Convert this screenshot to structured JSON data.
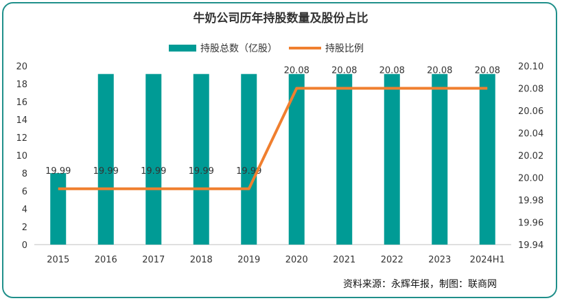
{
  "chart_data": {
    "type": "bar+line",
    "title": "牛奶公司历年持股数量及股份占比",
    "categories": [
      "2015",
      "2016",
      "2017",
      "2018",
      "2019",
      "2020",
      "2021",
      "2022",
      "2023",
      "2024H1"
    ],
    "series": [
      {
        "name": "持股总数（亿股）",
        "type": "bar",
        "axis": "left",
        "color": "#009b95",
        "values": [
          8.0,
          19.1,
          19.1,
          19.1,
          19.1,
          19.1,
          19.1,
          19.1,
          19.1,
          19.1
        ]
      },
      {
        "name": "持股比例",
        "type": "line",
        "axis": "right",
        "color": "#f07f2f",
        "values": [
          19.99,
          19.99,
          19.99,
          19.99,
          19.99,
          20.08,
          20.08,
          20.08,
          20.08,
          20.08
        ],
        "labels": [
          "19.99",
          "19.99",
          "19.99",
          "19.99",
          "19.99",
          "20.08",
          "20.08",
          "20.08",
          "20.08",
          "20.08"
        ]
      }
    ],
    "y_left": {
      "min": 0,
      "max": 20,
      "step": 2,
      "ticks": [
        "0",
        "2",
        "4",
        "6",
        "8",
        "10",
        "12",
        "14",
        "16",
        "18",
        "20"
      ]
    },
    "y_right": {
      "min": 19.94,
      "max": 20.1,
      "step": 0.02,
      "ticks": [
        "19.94",
        "19.96",
        "19.98",
        "20.00",
        "20.02",
        "20.04",
        "20.06",
        "20.08",
        "20.10"
      ]
    },
    "legend_position": "top-center",
    "source": "资料来源：永辉年报，制图：联商网"
  }
}
